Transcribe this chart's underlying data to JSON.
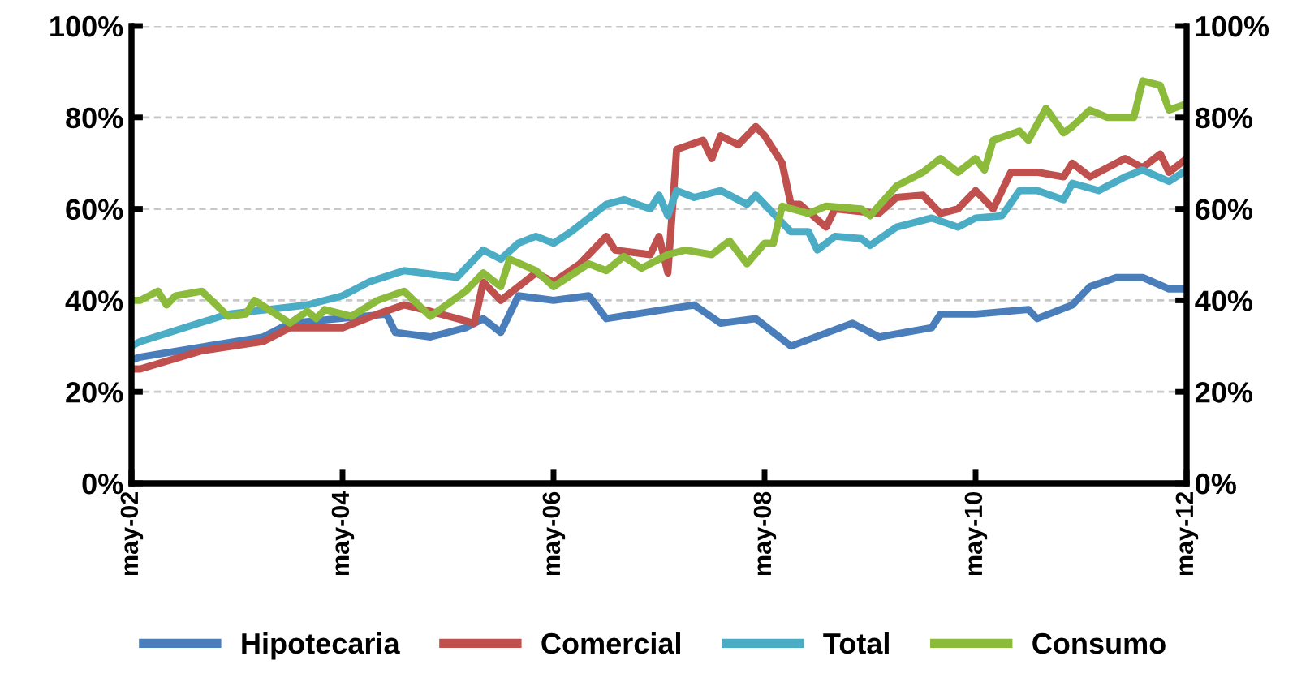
{
  "chart_data": {
    "type": "line",
    "legend": "bottom",
    "grid": "y",
    "marker": "none",
    "line_style": "solid",
    "xlim": [
      "2002-05",
      "2012-05"
    ],
    "xticks": [
      {
        "value": "2002-05",
        "label": "may-02"
      },
      {
        "value": "2004-05",
        "label": "may-04"
      },
      {
        "value": "2006-05",
        "label": "may-06"
      },
      {
        "value": "2008-05",
        "label": "may-08"
      },
      {
        "value": "2010-05",
        "label": "may-10"
      },
      {
        "value": "2012-05",
        "label": "may-12"
      }
    ],
    "ylim": [
      0,
      100
    ],
    "yticks": [
      {
        "value": 0,
        "label": "0%"
      },
      {
        "value": 20,
        "label": "20%"
      },
      {
        "value": 40,
        "label": "40%"
      },
      {
        "value": 60,
        "label": "60%"
      },
      {
        "value": 80,
        "label": "80%"
      },
      {
        "value": 100,
        "label": "100%"
      }
    ],
    "y2lim": [
      0,
      100
    ],
    "y2ticks": [
      {
        "value": 0,
        "label": "0%"
      },
      {
        "value": 20,
        "label": "20%"
      },
      {
        "value": 40,
        "label": "40%"
      },
      {
        "value": 60,
        "label": "60%"
      },
      {
        "value": 80,
        "label": "80%"
      },
      {
        "value": 100,
        "label": "100%"
      }
    ],
    "series": [
      {
        "name": "Hipotecaria",
        "color": "#4a7ebb",
        "x": [
          "2002-05",
          "2002-06",
          "2003-08",
          "2003-11",
          "2004-10",
          "2004-11",
          "2005-03",
          "2005-07",
          "2005-09",
          "2005-11",
          "2006-01",
          "2006-05",
          "2006-09",
          "2006-11",
          "2007-09",
          "2007-12",
          "2008-04",
          "2008-08",
          "2009-03",
          "2009-06",
          "2009-12",
          "2010-01",
          "2010-05",
          "2010-11",
          "2010-12",
          "2011-04",
          "2011-06",
          "2011-09",
          "2011-12",
          "2012-03",
          "2012-05"
        ],
        "values": [
          27,
          27.6,
          32,
          35,
          37,
          33,
          32,
          34,
          36,
          33,
          41,
          40,
          41,
          36,
          39,
          35,
          36,
          30,
          35,
          32,
          34,
          37,
          37,
          38,
          36,
          39,
          43,
          45,
          45,
          42.5,
          42.5
        ]
      },
      {
        "name": "Comercial",
        "color": "#c0504d",
        "x": [
          "2002-05",
          "2002-06",
          "2003-01",
          "2003-08",
          "2003-11",
          "2004-05",
          "2004-09",
          "2004-12",
          "2005-03",
          "2005-08",
          "2005-09",
          "2005-11",
          "2006-03",
          "2006-05",
          "2006-08",
          "2006-11",
          "2006-12",
          "2007-04",
          "2007-05",
          "2007-06",
          "2007-07",
          "2007-10",
          "2007-11",
          "2007-12",
          "2008-02",
          "2008-04",
          "2008-05",
          "2008-07",
          "2008-08",
          "2008-09",
          "2008-12",
          "2009-01",
          "2009-06",
          "2009-08",
          "2009-11",
          "2010-01",
          "2010-03",
          "2010-05",
          "2010-07",
          "2010-09",
          "2010-12",
          "2011-03",
          "2011-04",
          "2011-06",
          "2011-10",
          "2011-12",
          "2012-02",
          "2012-03",
          "2012-05"
        ],
        "values": [
          25,
          25,
          29,
          31,
          34,
          34,
          37,
          39,
          37.6,
          35,
          44,
          40,
          46,
          44,
          48,
          54,
          51,
          50,
          54,
          46,
          73,
          75,
          71,
          76,
          74,
          78,
          76,
          70,
          61,
          61,
          56,
          60,
          59,
          62.5,
          63,
          59,
          60,
          64,
          60,
          68,
          68,
          67,
          70,
          67,
          71,
          69,
          72,
          68,
          71
        ]
      },
      {
        "name": "Total",
        "color": "#4bacc6",
        "x": [
          "2002-05",
          "2002-06",
          "2003-04",
          "2004-01",
          "2004-05",
          "2004-08",
          "2004-12",
          "2005-06",
          "2005-09",
          "2005-11",
          "2006-01",
          "2006-03",
          "2006-05",
          "2006-07",
          "2006-11",
          "2007-01",
          "2007-04",
          "2007-05",
          "2007-06",
          "2007-07",
          "2007-09",
          "2007-12",
          "2008-03",
          "2008-04",
          "2008-08",
          "2008-10",
          "2008-11",
          "2009-01",
          "2009-04",
          "2009-05",
          "2009-08",
          "2009-12",
          "2010-03",
          "2010-05",
          "2010-08",
          "2010-10",
          "2010-12",
          "2011-03",
          "2011-04",
          "2011-07",
          "2011-10",
          "2011-12",
          "2012-03",
          "2012-05"
        ],
        "values": [
          30,
          31,
          37,
          39,
          41,
          44,
          46.5,
          45,
          51,
          49,
          52.5,
          54,
          52.5,
          55,
          61,
          62,
          60,
          63,
          58.5,
          64,
          62.5,
          64,
          61,
          63,
          55,
          55,
          51,
          54,
          53.5,
          52,
          56,
          58,
          56,
          58,
          58.5,
          64,
          64,
          62,
          65.6,
          64,
          67,
          68.5,
          66,
          68.5
        ]
      },
      {
        "name": "Consumo",
        "color": "#8cbb3c",
        "x": [
          "2002-05",
          "2002-06",
          "2002-08",
          "2002-09",
          "2002-10",
          "2003-01",
          "2003-04",
          "2003-06",
          "2003-07",
          "2003-11",
          "2004-01",
          "2004-02",
          "2004-03",
          "2004-06",
          "2004-09",
          "2004-12",
          "2005-03",
          "2005-07",
          "2005-09",
          "2005-11",
          "2005-12",
          "2006-03",
          "2006-05",
          "2006-09",
          "2006-11",
          "2007-01",
          "2007-03",
          "2007-06",
          "2007-08",
          "2007-11",
          "2008-01",
          "2008-03",
          "2008-05",
          "2008-06",
          "2008-07",
          "2008-10",
          "2008-12",
          "2009-04",
          "2009-05",
          "2009-08",
          "2009-11",
          "2010-01",
          "2010-03",
          "2010-05",
          "2010-06",
          "2010-07",
          "2010-10",
          "2010-11",
          "2011-01",
          "2011-03",
          "2011-04",
          "2011-06",
          "2011-08",
          "2011-11",
          "2011-12",
          "2012-02",
          "2012-03",
          "2012-05"
        ],
        "values": [
          40,
          40,
          42,
          39,
          41,
          42,
          36.5,
          37,
          40,
          35,
          37.6,
          36,
          38,
          36.5,
          40,
          42,
          36.5,
          42,
          46,
          43,
          49,
          46.5,
          43,
          48,
          46.5,
          49.6,
          47,
          50,
          51,
          50,
          53,
          48,
          52.5,
          52.5,
          60.6,
          59,
          60.6,
          60,
          58.5,
          65,
          68,
          71,
          68,
          71,
          68.5,
          75,
          77,
          75,
          82,
          76.6,
          78,
          81.6,
          80,
          80,
          88,
          87,
          81.6,
          83
        ]
      }
    ]
  }
}
